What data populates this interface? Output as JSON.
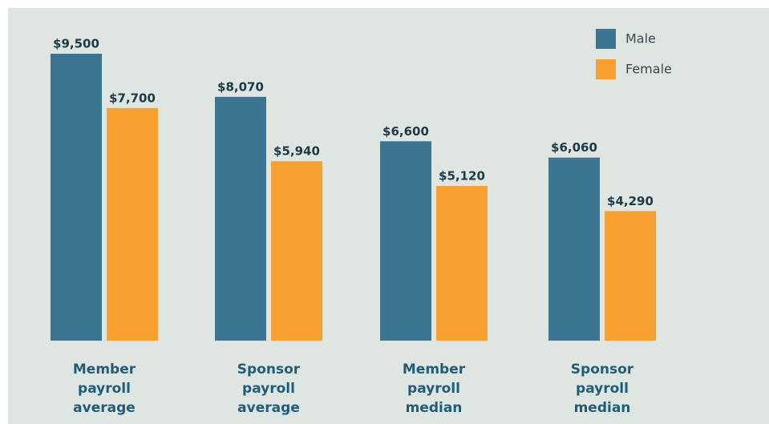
{
  "chart_data": {
    "type": "bar",
    "categories": [
      "Member payroll average",
      "Sponsor payroll average",
      "Member payroll median",
      "Sponsor payroll median"
    ],
    "series": [
      {
        "name": "Male",
        "color": "#3b7591",
        "values": [
          9500,
          8070,
          6600,
          6060
        ],
        "value_labels": [
          "$9,500",
          "$8,070",
          "$6,600",
          "$6,060"
        ]
      },
      {
        "name": "Female",
        "color": "#f8a131",
        "values": [
          7700,
          5940,
          5120,
          4290
        ],
        "value_labels": [
          "$7,700",
          "$5,940",
          "$5,120",
          "$4,290"
        ]
      }
    ],
    "legend": "top-right"
  }
}
